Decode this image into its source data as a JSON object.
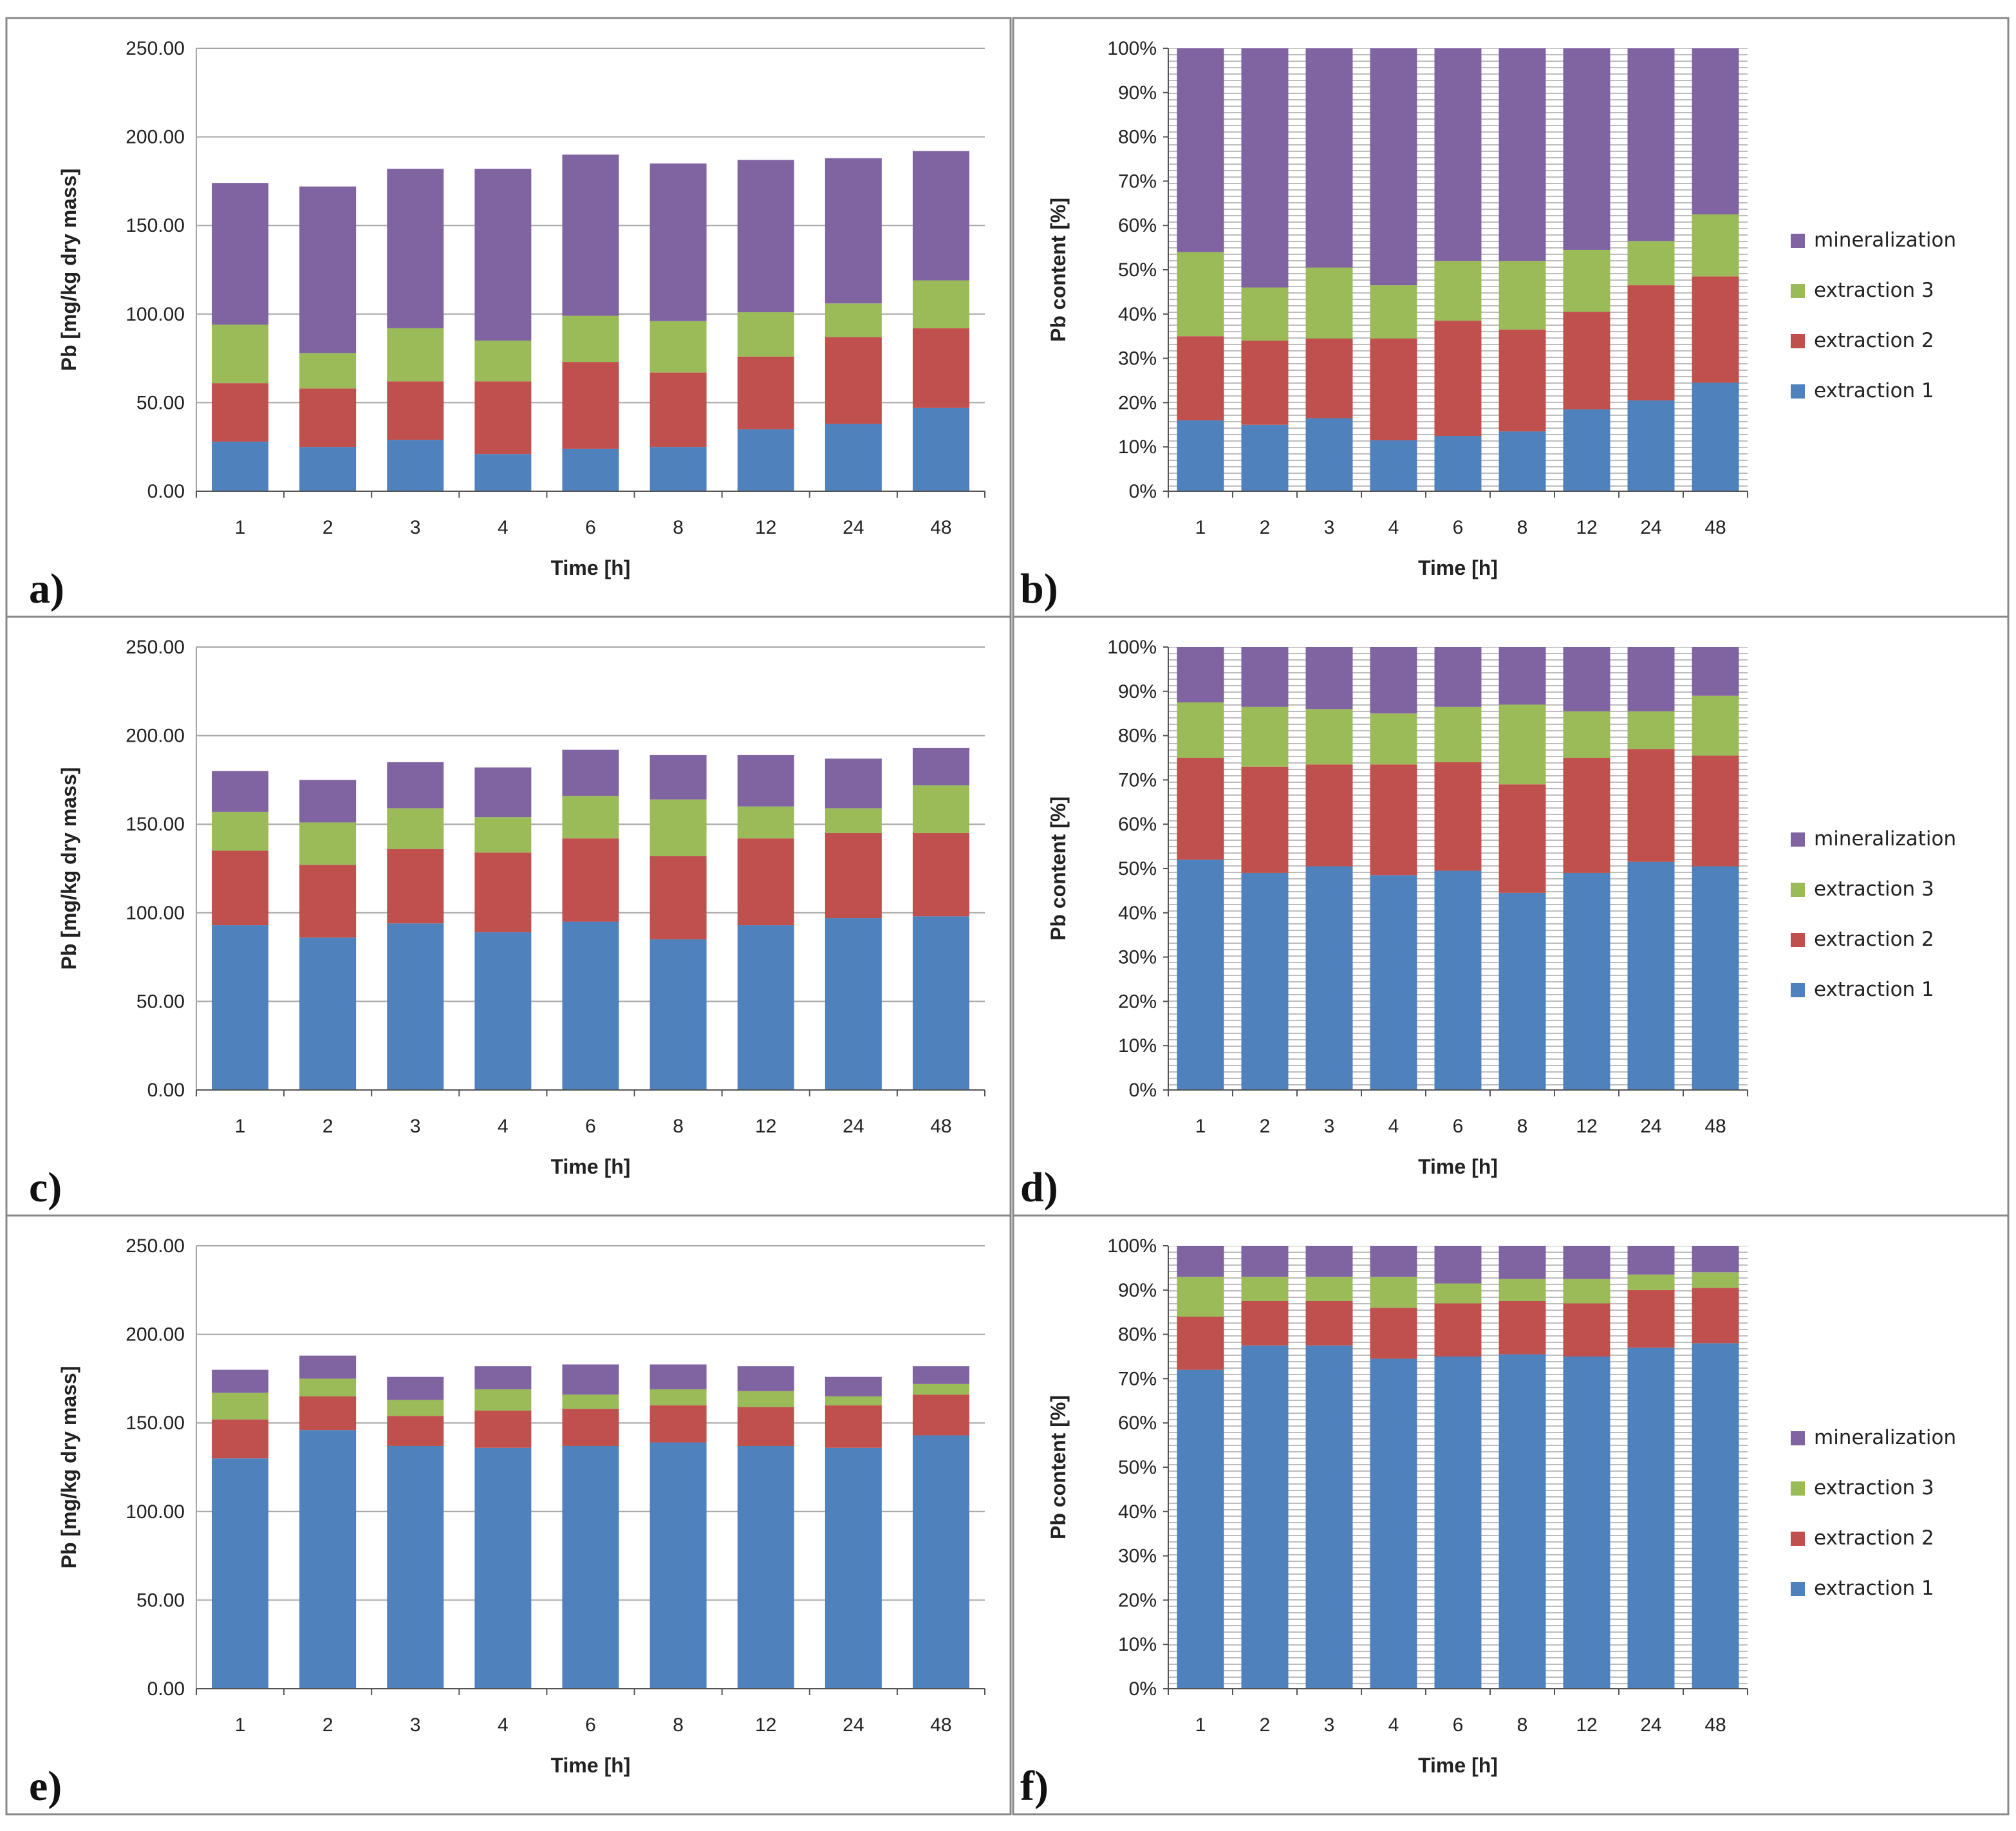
{
  "colors": {
    "extraction 1": "#4F81BD",
    "extraction 2": "#C0504D",
    "extraction 3": "#9BBB59",
    "mineralization": "#8064A2",
    "gridline": "#A6A6A6",
    "frame": "#888888"
  },
  "chart_data": [
    {
      "panel_label": "a)",
      "type": "bar",
      "stacked": true,
      "categories": [
        "1",
        "2",
        "3",
        "4",
        "6",
        "8",
        "12",
        "24",
        "48"
      ],
      "xlabel": "Time [h]",
      "ylabel": "Pb [mg/kg dry mass]",
      "ylim": [
        0,
        250
      ],
      "yticks": [
        0,
        50,
        100,
        150,
        200,
        250
      ],
      "ytick_labels": [
        "0.00",
        "50.00",
        "100.00",
        "150.00",
        "200.00",
        "250.00"
      ],
      "series": [
        {
          "name": "extraction 1",
          "values": [
            28,
            25,
            29,
            21,
            24,
            25,
            35,
            38,
            47
          ]
        },
        {
          "name": "extraction 2",
          "values": [
            33,
            33,
            33,
            41,
            49,
            42,
            41,
            49,
            45
          ]
        },
        {
          "name": "extraction 3",
          "values": [
            33,
            20,
            30,
            23,
            26,
            29,
            25,
            19,
            27
          ]
        },
        {
          "name": "mineralization",
          "values": [
            80,
            94,
            90,
            97,
            91,
            89,
            86,
            82,
            73
          ]
        }
      ]
    },
    {
      "panel_label": "b)",
      "type": "bar",
      "stacked": true,
      "percent": true,
      "categories": [
        "1",
        "2",
        "3",
        "4",
        "6",
        "8",
        "12",
        "24",
        "48"
      ],
      "xlabel": "Time [h]",
      "ylabel": "Pb content [%]",
      "ylim": [
        0,
        100
      ],
      "yticks": [
        0,
        10,
        20,
        30,
        40,
        50,
        60,
        70,
        80,
        90,
        100
      ],
      "ytick_labels": [
        "0%",
        "10%",
        "20%",
        "30%",
        "40%",
        "50%",
        "60%",
        "70%",
        "80%",
        "90%",
        "100%"
      ],
      "legend": [
        "mineralization",
        "extraction 3",
        "extraction 2",
        "extraction 1"
      ],
      "series": [
        {
          "name": "extraction 1",
          "values": [
            16,
            15,
            16.5,
            11.5,
            12.5,
            13.5,
            18.5,
            20.5,
            24.5
          ]
        },
        {
          "name": "extraction 2",
          "values": [
            19,
            19,
            18,
            23,
            26,
            23,
            22,
            26,
            24
          ]
        },
        {
          "name": "extraction 3",
          "values": [
            19,
            12,
            16,
            12,
            13.5,
            15.5,
            14,
            10,
            14
          ]
        },
        {
          "name": "mineralization",
          "values": [
            46,
            54,
            49.5,
            53.5,
            48,
            48,
            45.5,
            43.5,
            37.5
          ]
        }
      ]
    },
    {
      "panel_label": "c)",
      "type": "bar",
      "stacked": true,
      "categories": [
        "1",
        "2",
        "3",
        "4",
        "6",
        "8",
        "12",
        "24",
        "48"
      ],
      "xlabel": "Time [h]",
      "ylabel": "Pb [mg/kg dry mass]",
      "ylim": [
        0,
        250
      ],
      "yticks": [
        0,
        50,
        100,
        150,
        200,
        250
      ],
      "ytick_labels": [
        "0.00",
        "50.00",
        "100.00",
        "150.00",
        "200.00",
        "250.00"
      ],
      "series": [
        {
          "name": "extraction 1",
          "values": [
            93,
            86,
            94,
            89,
            95,
            85,
            93,
            97,
            98
          ]
        },
        {
          "name": "extraction 2",
          "values": [
            42,
            41,
            42,
            45,
            47,
            47,
            49,
            48,
            47
          ]
        },
        {
          "name": "extraction 3",
          "values": [
            22,
            24,
            23,
            20,
            24,
            32,
            18,
            14,
            27
          ]
        },
        {
          "name": "mineralization",
          "values": [
            23,
            24,
            26,
            28,
            26,
            25,
            29,
            28,
            21
          ]
        }
      ]
    },
    {
      "panel_label": "d)",
      "type": "bar",
      "stacked": true,
      "percent": true,
      "categories": [
        "1",
        "2",
        "3",
        "4",
        "6",
        "8",
        "12",
        "24",
        "48"
      ],
      "xlabel": "Time [h]",
      "ylabel": "Pb content [%]",
      "ylim": [
        0,
        100
      ],
      "yticks": [
        0,
        10,
        20,
        30,
        40,
        50,
        60,
        70,
        80,
        90,
        100
      ],
      "ytick_labels": [
        "0%",
        "10%",
        "20%",
        "30%",
        "40%",
        "50%",
        "60%",
        "70%",
        "80%",
        "90%",
        "100%"
      ],
      "legend": [
        "mineralization",
        "extraction 3",
        "extraction 2",
        "extraction 1"
      ],
      "series": [
        {
          "name": "extraction 1",
          "values": [
            52,
            49,
            50.5,
            48.5,
            49.5,
            44.5,
            49,
            51.5,
            50.5
          ]
        },
        {
          "name": "extraction 2",
          "values": [
            23,
            24,
            23,
            25,
            24.5,
            24.5,
            26,
            25.5,
            25
          ]
        },
        {
          "name": "extraction 3",
          "values": [
            12.5,
            13.5,
            12.5,
            11.5,
            12.5,
            18,
            10.5,
            8.5,
            13.5
          ]
        },
        {
          "name": "mineralization",
          "values": [
            12.5,
            13.5,
            14,
            15,
            13.5,
            13,
            14.5,
            14.5,
            11
          ]
        }
      ]
    },
    {
      "panel_label": "e)",
      "type": "bar",
      "stacked": true,
      "categories": [
        "1",
        "2",
        "3",
        "4",
        "6",
        "8",
        "12",
        "24",
        "48"
      ],
      "xlabel": "Time [h]",
      "ylabel": "Pb [mg/kg dry mass]",
      "ylim": [
        0,
        250
      ],
      "yticks": [
        0,
        50,
        100,
        150,
        200,
        250
      ],
      "ytick_labels": [
        "0.00",
        "50.00",
        "100.00",
        "150.00",
        "200.00",
        "250.00"
      ],
      "series": [
        {
          "name": "extraction 1",
          "values": [
            130,
            146,
            137,
            136,
            137,
            139,
            137,
            136,
            143
          ]
        },
        {
          "name": "extraction 2",
          "values": [
            22,
            19,
            17,
            21,
            21,
            21,
            22,
            24,
            23
          ]
        },
        {
          "name": "extraction 3",
          "values": [
            15,
            10,
            9,
            12,
            8,
            9,
            9,
            5,
            6
          ]
        },
        {
          "name": "mineralization",
          "values": [
            13,
            13,
            13,
            13,
            17,
            14,
            14,
            11,
            10
          ]
        }
      ]
    },
    {
      "panel_label": "f)",
      "type": "bar",
      "stacked": true,
      "percent": true,
      "categories": [
        "1",
        "2",
        "3",
        "4",
        "6",
        "8",
        "12",
        "24",
        "48"
      ],
      "xlabel": "Time [h]",
      "ylabel": "Pb content [%]",
      "ylim": [
        0,
        100
      ],
      "yticks": [
        0,
        10,
        20,
        30,
        40,
        50,
        60,
        70,
        80,
        90,
        100
      ],
      "ytick_labels": [
        "0%",
        "10%",
        "20%",
        "30%",
        "40%",
        "50%",
        "60%",
        "70%",
        "80%",
        "90%",
        "100%"
      ],
      "legend": [
        "mineralization",
        "extraction 3",
        "extraction 2",
        "extraction 1"
      ],
      "series": [
        {
          "name": "extraction 1",
          "values": [
            72,
            77.5,
            77.5,
            74.5,
            75,
            75.5,
            75,
            77,
            78
          ]
        },
        {
          "name": "extraction 2",
          "values": [
            12,
            10,
            10,
            11.5,
            12,
            12,
            12,
            13,
            12.5
          ]
        },
        {
          "name": "extraction 3",
          "values": [
            9,
            5.5,
            5.5,
            7,
            4.5,
            5,
            5.5,
            3.5,
            3.5
          ]
        },
        {
          "name": "mineralization",
          "values": [
            7,
            7,
            7,
            7,
            8.5,
            7.5,
            7.5,
            6.5,
            6
          ]
        }
      ]
    }
  ]
}
